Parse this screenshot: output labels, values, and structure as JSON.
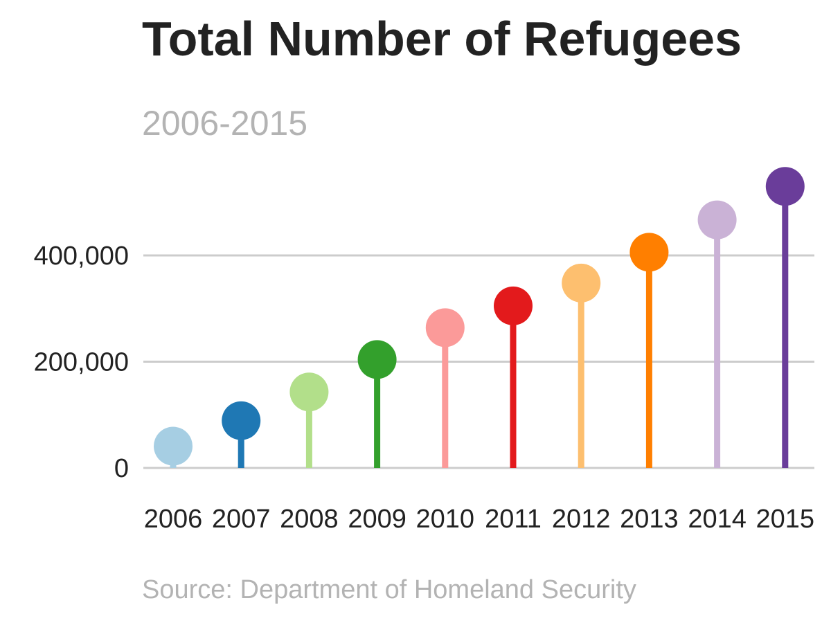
{
  "header": {
    "title": "Total Number of Refugees",
    "subtitle": "2006-2015"
  },
  "footer": {
    "source": "Source: Department of Homeland Security"
  },
  "chart_data": {
    "type": "lollipop",
    "title": "Total Number of Refugees",
    "subtitle": "2006-2015",
    "categories": [
      "2006",
      "2007",
      "2008",
      "2009",
      "2010",
      "2011",
      "2012",
      "2013",
      "2014",
      "2015"
    ],
    "values": [
      41000,
      89000,
      143000,
      204000,
      264000,
      305000,
      348000,
      406000,
      467000,
      530000
    ],
    "colors": [
      "#a6cee3",
      "#1f78b4",
      "#b2df8a",
      "#33a02c",
      "#fb9a99",
      "#e31a1c",
      "#fdbf6f",
      "#ff7f00",
      "#cab2d6",
      "#6a3d9a"
    ],
    "yticks": [
      0,
      200000,
      400000
    ],
    "ytick_labels": [
      "0",
      "200,000",
      "400,000"
    ],
    "ylim": [
      0,
      560000
    ],
    "grid": true,
    "gridline_color": "#cccccc"
  }
}
